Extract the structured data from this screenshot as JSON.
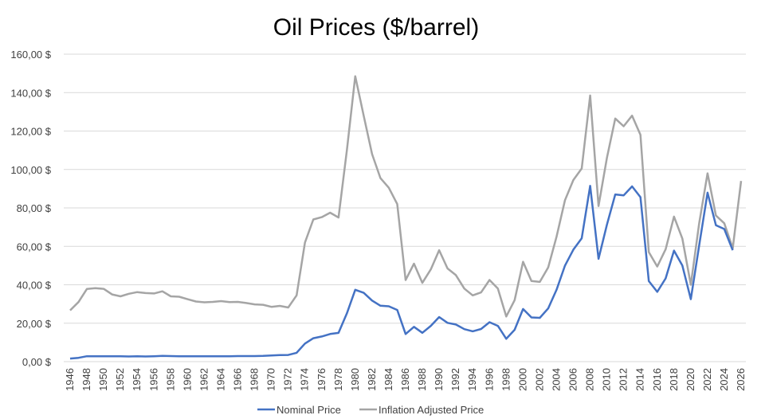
{
  "chart_data": {
    "type": "line",
    "title": "Oil Prices ($/barrel)",
    "xlabel": "",
    "ylabel": "",
    "ylim": [
      0,
      160
    ],
    "y_ticks": [
      "0,00 $",
      "20,00 $",
      "40,00 $",
      "60,00 $",
      "80,00 $",
      "100,00 $",
      "120,00 $",
      "140,00 $",
      "160,00 $"
    ],
    "x_tick_labels": [
      "1946",
      "1948",
      "1950",
      "1952",
      "1954",
      "1956",
      "1958",
      "1960",
      "1962",
      "1964",
      "1966",
      "1968",
      "1970",
      "1972",
      "1974",
      "1976",
      "1978",
      "1980",
      "1982",
      "1984",
      "1986",
      "1988",
      "1990",
      "1992",
      "1994",
      "1996",
      "1998",
      "2000",
      "2002",
      "2004",
      "2006",
      "2008",
      "2010",
      "2012",
      "2014",
      "2016",
      "2018",
      "2020",
      "2022",
      "2024",
      "2026"
    ],
    "grid": true,
    "legend_position": "bottom",
    "x": [
      1946,
      1947,
      1948,
      1949,
      1950,
      1951,
      1952,
      1953,
      1954,
      1955,
      1956,
      1957,
      1958,
      1959,
      1960,
      1961,
      1962,
      1963,
      1964,
      1965,
      1966,
      1967,
      1968,
      1969,
      1970,
      1971,
      1972,
      1973,
      1974,
      1975,
      1976,
      1977,
      1978,
      1979,
      1980,
      1981,
      1982,
      1983,
      1984,
      1985,
      1986,
      1987,
      1988,
      1989,
      1990,
      1991,
      1992,
      1993,
      1994,
      1995,
      1996,
      1997,
      1998,
      1999,
      2000,
      2001,
      2002,
      2003,
      2004,
      2005,
      2006,
      2007,
      2008,
      2009,
      2010,
      2011,
      2012,
      2013,
      2014,
      2015,
      2016,
      2017,
      2018,
      2019,
      2020,
      2021,
      2022,
      2023,
      2024,
      2025,
      2026
    ],
    "series": [
      {
        "name": "Nominal Price",
        "color": "#4472C4",
        "values": [
          1.6,
          2.0,
          2.8,
          2.8,
          2.8,
          2.8,
          2.8,
          2.7,
          2.8,
          2.7,
          2.8,
          3.0,
          2.9,
          2.8,
          2.8,
          2.8,
          2.8,
          2.8,
          2.8,
          2.8,
          2.9,
          2.9,
          2.9,
          3.0,
          3.2,
          3.4,
          3.5,
          4.6,
          9.4,
          12.2,
          13.1,
          14.4,
          14.95,
          25.1,
          37.4,
          35.8,
          31.8,
          29.1,
          28.8,
          26.9,
          14.4,
          18.1,
          15.0,
          18.6,
          23.2,
          20.2,
          19.3,
          16.9,
          15.8,
          17.0,
          20.5,
          18.6,
          11.9,
          16.6,
          27.4,
          23.0,
          22.8,
          27.7,
          37.4,
          50.0,
          58.3,
          64.2,
          91.5,
          53.5,
          71.2,
          87.0,
          86.5,
          91.2,
          85.6,
          41.9,
          36.3,
          43.3,
          57.8,
          50.0,
          32.5,
          60.5,
          87.9,
          71.0,
          69.0,
          58.0,
          null
        ]
      },
      {
        "name": "Inflation Adjusted Price",
        "color": "#A5A5A5",
        "values": [
          26.7,
          31.0,
          37.8,
          38.2,
          37.9,
          35.0,
          34.0,
          35.3,
          36.2,
          35.7,
          35.5,
          36.6,
          34.0,
          33.8,
          32.5,
          31.3,
          30.9,
          31.1,
          31.5,
          31.0,
          31.1,
          30.5,
          29.8,
          29.6,
          28.5,
          29.0,
          28.2,
          34.5,
          62.0,
          74.0,
          75.2,
          77.5,
          75.0,
          110.0,
          148.5,
          128.0,
          108.0,
          95.5,
          90.5,
          82.0,
          42.5,
          51.0,
          41.0,
          48.0,
          58.0,
          48.5,
          45.0,
          38.0,
          34.5,
          36.0,
          42.5,
          38.0,
          23.5,
          32.0,
          52.0,
          42.0,
          41.5,
          49.0,
          65.0,
          84.0,
          94.5,
          100.5,
          138.5,
          81.0,
          106.0,
          126.5,
          122.5,
          128.0,
          118.0,
          57.0,
          49.5,
          58.5,
          75.5,
          64.0,
          40.0,
          72.0,
          98.0,
          76.0,
          72.0,
          59.0,
          94.0
        ]
      }
    ]
  }
}
